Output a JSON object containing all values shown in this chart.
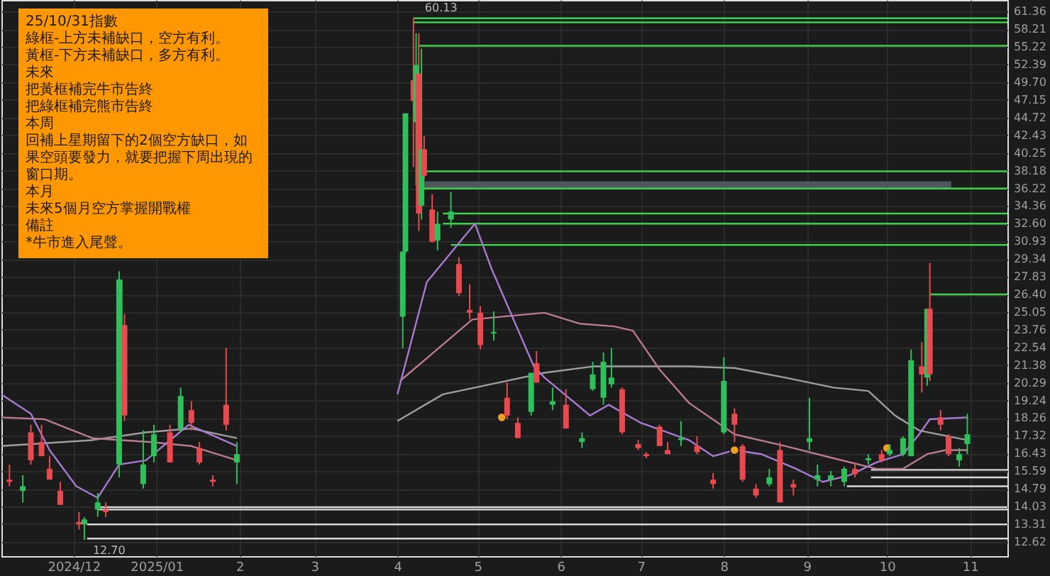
{
  "chart_data": {
    "type": "candlestick",
    "log": "y",
    "grid": true,
    "xlim": [
      "2024-11-04",
      "2025-11-15"
    ],
    "ylim": [
      12.1,
      63.5
    ],
    "xticks": [
      {
        "value": "2024-12-01",
        "label": "2024/12"
      },
      {
        "value": "2025-01-01",
        "label": "2025/01"
      },
      {
        "value": "2025-02-01",
        "label": "2"
      },
      {
        "value": "2025-03-01",
        "label": "3"
      },
      {
        "value": "2025-04-01",
        "label": "4"
      },
      {
        "value": "2025-05-01",
        "label": "5"
      },
      {
        "value": "2025-06-01",
        "label": "6"
      },
      {
        "value": "2025-07-01",
        "label": "7"
      },
      {
        "value": "2025-08-01",
        "label": "8"
      },
      {
        "value": "2025-09-01",
        "label": "9"
      },
      {
        "value": "2025-10-01",
        "label": "10"
      },
      {
        "value": "2025-11-01",
        "label": "11"
      }
    ],
    "yticks": [
      61.36,
      58.21,
      55.22,
      52.39,
      {
        "value": 49.7,
        "label": "49.70"
      },
      47.15,
      44.72,
      42.43,
      40.25,
      38.18,
      36.22,
      34.36,
      {
        "value": 32.6,
        "label": "32.60"
      },
      30.93,
      29.34,
      27.83,
      {
        "value": 26.4,
        "label": "26.40"
      },
      25.05,
      23.76,
      22.54,
      21.38,
      20.29,
      19.24,
      18.26,
      17.32,
      16.43,
      15.59,
      14.79,
      14.03,
      13.31,
      12.62
    ],
    "x": [
      "2024-11-07",
      "2024-11-12",
      "2024-11-15",
      "2024-11-19",
      "2024-11-22",
      "2024-11-26",
      "2024-12-03",
      "2024-12-05",
      "2024-12-10",
      "2024-12-13",
      "2024-12-18",
      "2024-12-19",
      "2024-12-20",
      "2024-12-27",
      "2024-12-31",
      "2025-01-06",
      "2025-01-10",
      "2025-01-14",
      "2025-01-17",
      "2025-01-22",
      "2025-01-27",
      "2025-01-31",
      "2025-04-03",
      "2025-04-04",
      "2025-04-07",
      "2025-04-08",
      "2025-04-09",
      "2025-04-10",
      "2025-04-11",
      "2025-04-14",
      "2025-04-16",
      "2025-04-21",
      "2025-04-24",
      "2025-04-28",
      "2025-05-02",
      "2025-05-07",
      "2025-05-12",
      "2025-05-16",
      "2025-05-21",
      "2025-05-23",
      "2025-05-29",
      "2025-06-03",
      "2025-06-09",
      "2025-06-13",
      "2025-06-17",
      "2025-06-20",
      "2025-06-24",
      "2025-06-30",
      "2025-07-03",
      "2025-07-08",
      "2025-07-11",
      "2025-07-16",
      "2025-07-22",
      "2025-07-28",
      "2025-08-01",
      "2025-08-05",
      "2025-08-08",
      "2025-08-13",
      "2025-08-18",
      "2025-08-22",
      "2025-08-27",
      "2025-09-02",
      "2025-09-05",
      "2025-09-10",
      "2025-09-15",
      "2025-09-19",
      "2025-09-24",
      "2025-09-29",
      "2025-10-02",
      "2025-10-07",
      "2025-10-10",
      "2025-10-14",
      "2025-10-16",
      "2025-10-17",
      "2025-10-21",
      "2025-10-24",
      "2025-10-28",
      "2025-10-31"
    ],
    "ohlc": [
      [
        15.2,
        15.9,
        14.9,
        15.1
      ],
      [
        14.7,
        15.4,
        14.2,
        14.9
      ],
      [
        17.5,
        17.9,
        15.9,
        16.1
      ],
      [
        17.0,
        17.9,
        16.3,
        16.3
      ],
      [
        15.7,
        16.3,
        15.2,
        15.2
      ],
      [
        14.7,
        15.1,
        14.1,
        14.1
      ],
      [
        13.4,
        13.8,
        13.1,
        13.3
      ],
      [
        13.3,
        13.6,
        12.7,
        13.5
      ],
      [
        13.9,
        14.6,
        13.6,
        14.2
      ],
      [
        13.9,
        14.2,
        13.6,
        13.8
      ],
      [
        15.9,
        28.3,
        15.3,
        27.6
      ],
      [
        24.0,
        27.6,
        19.9,
        24.1
      ],
      [
        24.1,
        24.9,
        18.1,
        18.4
      ],
      [
        15.0,
        17.6,
        14.8,
        15.9
      ],
      [
        16.3,
        17.9,
        16.0,
        17.4
      ],
      [
        17.5,
        17.9,
        16.0,
        16.0
      ],
      [
        17.7,
        20.0,
        17.5,
        19.5
      ],
      [
        18.7,
        19.2,
        17.6,
        18.0
      ],
      [
        16.7,
        17.0,
        15.9,
        16.0
      ],
      [
        15.2,
        15.4,
        14.9,
        15.1
      ],
      [
        19.0,
        22.5,
        17.6,
        17.9
      ],
      [
        16.0,
        17.0,
        15.0,
        16.4
      ],
      [
        24.7,
        30.0,
        22.5,
        30.0
      ],
      [
        30.0,
        45.3,
        29.8,
        45.3
      ],
      [
        50.0,
        60.13,
        38.6,
        47.0
      ],
      [
        44.1,
        57.5,
        36.5,
        52.3
      ],
      [
        51.0,
        57.5,
        31.9,
        33.6
      ],
      [
        34.4,
        54.9,
        33.0,
        40.7
      ],
      [
        40.7,
        42.3,
        37.2,
        37.6
      ],
      [
        34.0,
        35.6,
        30.8,
        30.9
      ],
      [
        31.0,
        33.8,
        30.1,
        32.6
      ],
      [
        33.0,
        35.8,
        32.2,
        33.8
      ],
      [
        28.9,
        29.5,
        26.3,
        26.5
      ],
      [
        25.2,
        27.2,
        24.5,
        25.0
      ],
      [
        25.0,
        25.5,
        22.4,
        22.7
      ],
      [
        23.5,
        25.1,
        23.0,
        23.6
      ],
      [
        19.4,
        20.3,
        18.2,
        18.4
      ],
      [
        18.0,
        18.3,
        17.2,
        17.2
      ],
      [
        18.6,
        20.9,
        18.4,
        20.9
      ],
      [
        21.5,
        22.3,
        20.3,
        20.3
      ],
      [
        19.0,
        20.0,
        18.7,
        19.2
      ],
      [
        19.0,
        19.9,
        17.7,
        17.7
      ],
      [
        17.0,
        17.5,
        16.7,
        17.2
      ],
      [
        19.9,
        21.6,
        19.8,
        20.8
      ],
      [
        19.4,
        22.2,
        19.0,
        21.6
      ],
      [
        20.2,
        22.5,
        20.0,
        20.6
      ],
      [
        19.9,
        20.0,
        17.4,
        17.5
      ],
      [
        16.9,
        17.1,
        16.6,
        16.7
      ],
      [
        16.4,
        16.5,
        16.2,
        16.3
      ],
      [
        17.8,
        17.9,
        16.8,
        16.8
      ],
      [
        16.6,
        17.0,
        16.4,
        16.4
      ],
      [
        17.1,
        18.1,
        16.8,
        17.2
      ],
      [
        16.8,
        17.3,
        16.4,
        16.5
      ],
      [
        15.2,
        15.5,
        14.8,
        15.0
      ],
      [
        17.5,
        21.9,
        17.4,
        20.4
      ],
      [
        18.5,
        18.8,
        17.0,
        17.9
      ],
      [
        16.8,
        16.9,
        15.1,
        15.2
      ],
      [
        14.8,
        15.0,
        14.4,
        14.5
      ],
      [
        15.0,
        15.7,
        14.9,
        15.3
      ],
      [
        16.6,
        17.0,
        14.2,
        14.2
      ],
      [
        15.0,
        15.2,
        14.5,
        14.85
      ],
      [
        17.0,
        19.4,
        16.6,
        17.2
      ],
      [
        15.2,
        15.9,
        14.9,
        15.4
      ],
      [
        15.2,
        15.6,
        14.9,
        15.4
      ],
      [
        15.1,
        15.8,
        14.9,
        15.7
      ],
      [
        15.7,
        16.0,
        15.3,
        15.45
      ],
      [
        16.1,
        16.4,
        15.9,
        16.2
      ],
      [
        16.4,
        16.6,
        16.0,
        16.1
      ],
      [
        16.4,
        16.9,
        16.3,
        16.6
      ],
      [
        16.4,
        17.3,
        16.3,
        17.2
      ],
      [
        16.3,
        22.4,
        16.3,
        21.7
      ],
      [
        21.3,
        22.9,
        19.7,
        20.8
      ],
      [
        20.6,
        25.3,
        20.1,
        25.3
      ],
      [
        25.3,
        29.0,
        20.4,
        20.8
      ],
      [
        18.3,
        18.7,
        17.6,
        17.9
      ],
      [
        17.3,
        17.4,
        16.3,
        16.4
      ],
      [
        16.1,
        16.7,
        15.8,
        16.4
      ],
      [
        16.9,
        18.5,
        16.4,
        17.4
      ]
    ],
    "colors": [
      "#e84a50",
      "#2fbf5b",
      "#e84a50",
      "#e84a50",
      "#e84a50",
      "#e84a50",
      "#e84a50",
      "#2fbf5b",
      "#2fbf5b",
      "#e84a50",
      "#2fbf5b",
      "#2fbf5b",
      "#e84a50",
      "#2fbf5b",
      "#2fbf5b",
      "#e84a50",
      "#2fbf5b",
      "#e84a50",
      "#e84a50",
      "#e84a50",
      "#e84a50",
      "#2fbf5b",
      "#2fbf5b",
      "#2fbf5b",
      "#e84a50",
      "#2fbf5b",
      "#e84a50",
      "#2fbf5b",
      "#e84a50",
      "#e84a50",
      "#2fbf5b",
      "#2fbf5b",
      "#e84a50",
      "#e84a50",
      "#e84a50",
      "#2fbf5b",
      "#e84a50",
      "#e84a50",
      "#2fbf5b",
      "#e84a50",
      "#2fbf5b",
      "#e84a50",
      "#2fbf5b",
      "#2fbf5b",
      "#2fbf5b",
      "#2fbf5b",
      "#e84a50",
      "#e84a50",
      "#e84a50",
      "#e84a50",
      "#e84a50",
      "#2fbf5b",
      "#e84a50",
      "#e84a50",
      "#2fbf5b",
      "#e84a50",
      "#e84a50",
      "#e84a50",
      "#2fbf5b",
      "#e84a50",
      "#e84a50",
      "#2fbf5b",
      "#2fbf5b",
      "#2fbf5b",
      "#2fbf5b",
      "#e84a50",
      "#2fbf5b",
      "#e84a50",
      "#2fbf5b",
      "#2fbf5b",
      "#2fbf5b",
      "#e84a50",
      "#2fbf5b",
      "#e84a50",
      "#e84a50",
      "#e84a50",
      "#2fbf5b",
      "#2fbf5b"
    ],
    "series": [
      {
        "type": "line",
        "color": "#3ecf4a",
        "x": [
          "2025-04-07",
          "2025-11-15"
        ],
        "values": [
          60.13,
          60.13
        ]
      },
      {
        "type": "line",
        "color": "#3ecf4a",
        "x": [
          "2025-04-07",
          "2025-11-15"
        ],
        "values": [
          59.4,
          59.4
        ]
      },
      {
        "type": "line",
        "color": "#3ecf4a",
        "x": [
          "2025-04-09",
          "2025-11-15"
        ],
        "values": [
          55.4,
          55.4
        ]
      },
      {
        "type": "line",
        "color": "#3ecf4a",
        "x": [
          "2025-04-11",
          "2025-11-15"
        ],
        "values": [
          38.1,
          38.1
        ]
      },
      {
        "type": "line",
        "color": "#3ecf4a",
        "x": [
          "2025-04-11",
          "2025-10-25",
          "2025-11-15"
        ],
        "values": [
          36.2,
          36.2,
          36.2
        ],
        "lower": [
          36.2,
          36.2,
          null
        ],
        "upper": [
          37.0,
          37.0,
          null
        ]
      },
      {
        "type": "line",
        "color": "#3ecf4a",
        "x": [
          "2025-04-18",
          "2025-11-15"
        ],
        "values": [
          33.6,
          33.6
        ]
      },
      {
        "type": "line",
        "color": "#3ecf4a",
        "x": [
          "2025-04-18",
          "2025-11-15"
        ],
        "values": [
          32.6,
          32.6
        ]
      },
      {
        "type": "line",
        "color": "#3ecf4a",
        "x": [
          "2025-04-21",
          "2025-11-15"
        ],
        "values": [
          30.6,
          30.6
        ]
      },
      {
        "type": "line",
        "color": "#3ecf4a",
        "x": [
          "2025-10-17",
          "2025-11-15"
        ],
        "values": [
          26.4,
          26.4
        ]
      },
      {
        "type": "line",
        "color": "#d8d8d8",
        "x": [
          "2024-12-10",
          "2025-11-15"
        ],
        "values": [
          14.0,
          14.0
        ]
      },
      {
        "type": "line",
        "color": "#d8d8d8",
        "x": [
          "2024-12-10",
          "2025-11-15"
        ],
        "values": [
          13.9,
          13.9
        ]
      },
      {
        "type": "line",
        "color": "#d8d8d8",
        "x": [
          "2024-12-06",
          "2025-11-15"
        ],
        "values": [
          13.3,
          13.3
        ]
      },
      {
        "type": "line",
        "color": "#d8d8d8",
        "x": [
          "2024-12-06",
          "2025-11-15"
        ],
        "values": [
          12.75,
          12.75
        ]
      },
      {
        "type": "line",
        "color": "#d8d8d8",
        "x": [
          "2025-09-25",
          "2025-11-15"
        ],
        "values": [
          15.65,
          15.65
        ]
      },
      {
        "type": "line",
        "color": "#d8d8d8",
        "x": [
          "2025-09-25",
          "2025-11-15"
        ],
        "values": [
          15.3,
          15.3
        ]
      },
      {
        "type": "line",
        "color": "#d8d8d8",
        "x": [
          "2025-09-16",
          "2025-11-15"
        ],
        "values": [
          14.9,
          14.9
        ]
      },
      {
        "type": "line",
        "color": "#9e9e9e",
        "x": [
          "2024-11-04",
          "2024-12-08",
          "2024-12-28",
          "2025-01-14",
          "2025-01-31",
          "2025-02-15",
          "2025-04-01",
          "2025-04-18",
          "2025-05-06",
          "2025-05-26",
          "2025-06-13",
          "2025-07-19",
          "2025-08-05",
          "2025-08-24",
          "2025-09-11",
          "2025-09-24",
          "2025-10-04",
          "2025-10-13",
          "2025-10-31"
        ],
        "values": [
          16.8,
          17.1,
          17.5,
          17.7,
          17.2,
          null,
          18.1,
          19.6,
          20.2,
          20.9,
          21.3,
          21.3,
          21.2,
          20.6,
          20.0,
          19.8,
          18.4,
          17.6,
          17.1
        ]
      },
      {
        "type": "line",
        "color": "#b97b8f",
        "x": [
          "2024-11-04",
          "2024-11-20",
          "2024-12-08",
          "2024-12-30",
          "2025-01-14",
          "2025-01-31",
          "2025-02-15",
          "2025-04-02",
          "2025-04-29",
          "2025-05-26",
          "2025-06-08",
          "2025-06-21",
          "2025-06-28",
          "2025-07-08",
          "2025-07-19",
          "2025-08-05",
          "2025-08-24",
          "2025-09-11",
          "2025-09-27",
          "2025-10-07",
          "2025-10-16",
          "2025-10-23",
          "2025-10-31"
        ],
        "values": [
          18.3,
          18.2,
          17.2,
          17.0,
          16.8,
          16.1,
          null,
          20.4,
          24.5,
          25.0,
          24.2,
          24.0,
          23.7,
          21.1,
          19.1,
          17.4,
          16.8,
          16.2,
          15.7,
          15.7,
          16.4,
          16.6,
          16.6
        ]
      },
      {
        "type": "line",
        "color": "#a77bd0",
        "x": [
          "2024-11-04",
          "2024-11-15",
          "2024-11-22",
          "2024-12-02",
          "2024-12-10",
          "2024-12-18",
          "2024-12-28",
          "2025-01-13",
          "2025-01-31",
          "2025-02-15",
          "2025-04-01",
          "2025-04-12",
          "2025-04-30",
          "2025-05-06",
          "2025-05-22",
          "2025-05-26",
          "2025-06-12",
          "2025-06-19",
          "2025-07-01",
          "2025-07-19",
          "2025-07-28",
          "2025-08-05",
          "2025-08-15",
          "2025-08-28",
          "2025-09-07",
          "2025-09-17",
          "2025-09-27",
          "2025-10-07",
          "2025-10-13",
          "2025-10-17",
          "2025-10-31"
        ],
        "values": [
          19.6,
          18.5,
          16.6,
          14.9,
          14.4,
          15.9,
          16.1,
          17.9,
          16.8,
          null,
          19.6,
          27.4,
          32.6,
          28.6,
          21.3,
          20.6,
          18.4,
          19.0,
          18.0,
          17.1,
          16.3,
          16.6,
          16.4,
          15.7,
          15.1,
          15.4,
          16.0,
          16.4,
          17.4,
          18.2,
          18.3
        ]
      },
      {
        "type": "scatter",
        "color": "#f0a020",
        "marker": "circle",
        "x": [
          "2025-05-10",
          "2025-08-05",
          "2025-10-01"
        ],
        "values": [
          18.3,
          16.6,
          16.7
        ]
      }
    ],
    "annotations": [
      {
        "text": "60.13",
        "x": "2025-04-07",
        "y": 60.13
      },
      {
        "text": "12.70",
        "x": "2024-12-05",
        "y": 12.7
      },
      "25/10/31指數",
      "綠框-上方未補缺口，空方有利。",
      "黃框-下方未補缺口，多方有利。",
      "未來",
      "把黃框補完牛市告終",
      "把綠框補完熊市告終",
      "本周",
      "回補上星期留下的2個空方缺口，如果空頭要發力，就要把握下周出現的窗口期。",
      "本月",
      "未來5個月空方掌握開戰權",
      "備註",
      "*牛市進入尾聲。"
    ]
  }
}
